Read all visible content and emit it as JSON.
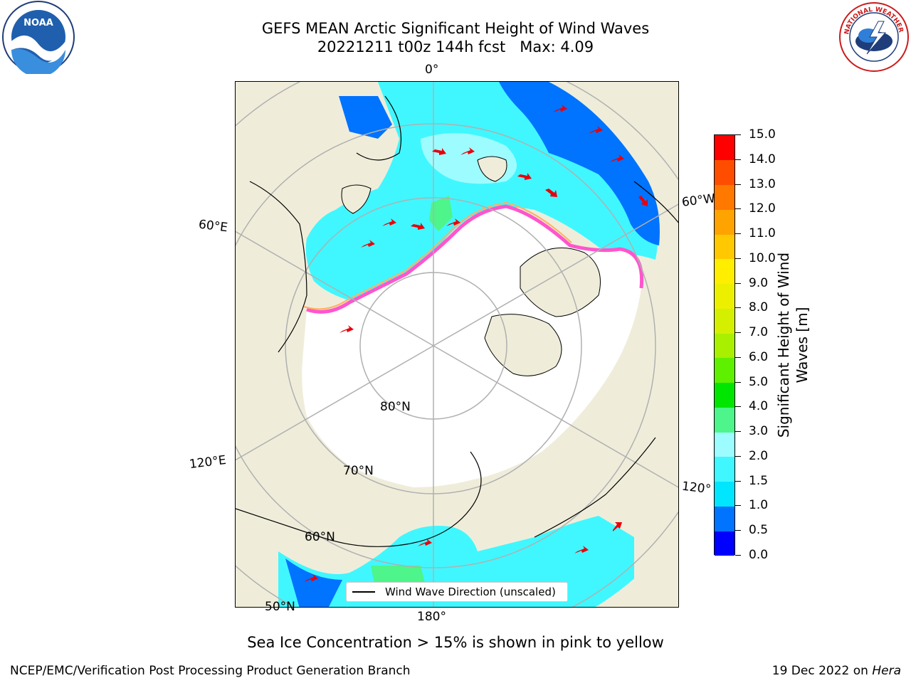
{
  "title": {
    "line1": "GEFS MEAN Arctic Significant Height of Wind Waves",
    "line2": "20221211 t00z 144h fcst   Max: 4.09"
  },
  "logos": {
    "noaa_text": "NOAA",
    "noaa_ring": "NATIONAL OCEANIC AND ATMOSPHERIC ADMINISTRATION · U.S. DEPARTMENT OF COMMERCE",
    "nws_ring": "NATIONAL WEATHER SERVICE"
  },
  "map": {
    "lon_labels": {
      "top": "0°",
      "right_top": "60°W",
      "left_top": "60°E",
      "left_bottom": "120°E",
      "right_bottom": "120°",
      "bottom": "180°"
    },
    "lat_labels": {
      "inner": "80°N",
      "mid": "70°N",
      "outer": "60°N",
      "outermost": "50°N"
    },
    "colors": {
      "land": "#efedda",
      "ice": "#ffffff",
      "grid": "#b0b0b0",
      "arrow": "#e8000b"
    }
  },
  "legend": {
    "label": "Wind Wave Direction (unscaled)"
  },
  "colorbar": {
    "label_line1": "Significant Height of Wind",
    "label_line2": "Waves [m]",
    "ticks": [
      "0.0",
      "0.5",
      "1.0",
      "1.5",
      "2.0",
      "3.0",
      "4.0",
      "5.0",
      "6.0",
      "7.0",
      "8.0",
      "9.0",
      "10.0",
      "11.0",
      "12.0",
      "13.0",
      "14.0",
      "15.0"
    ],
    "colors": [
      "#0000ff",
      "#0073ff",
      "#00e6ff",
      "#40f7ff",
      "#9dfcff",
      "#4df58a",
      "#00e600",
      "#5ff000",
      "#a8f000",
      "#d4f000",
      "#ecf000",
      "#ffee00",
      "#ffc800",
      "#ffa300",
      "#ff7800",
      "#ff4d00",
      "#ff0000"
    ]
  },
  "subtitle": "Sea Ice Concentration > 15% is shown in pink to yellow",
  "footer": {
    "left": "NCEP/EMC/Verification Post Processing Product Generation Branch",
    "right_prefix": "19 Dec 2022 on ",
    "right_host": "Hera"
  }
}
